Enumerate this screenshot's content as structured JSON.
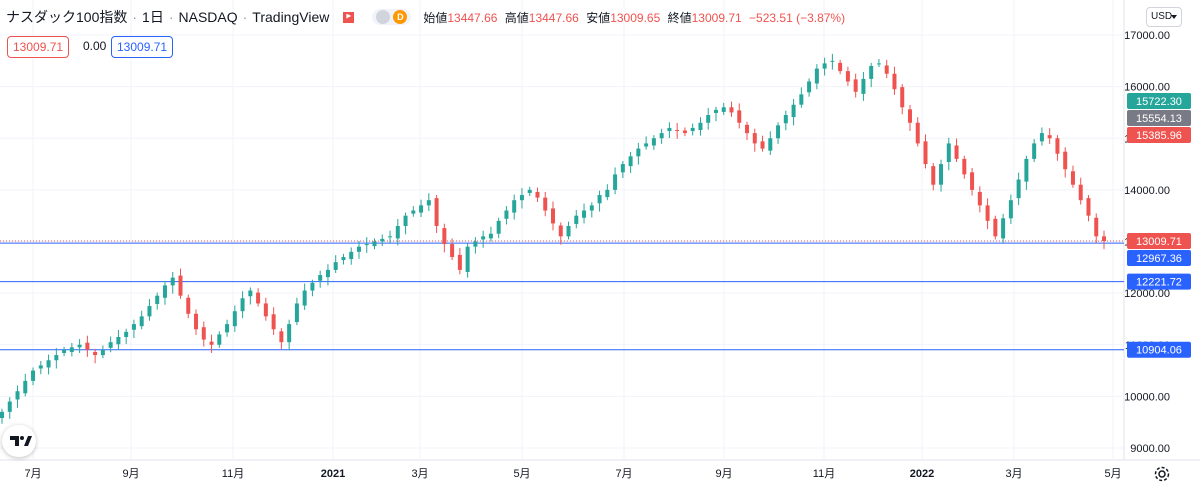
{
  "header": {
    "symbol": "ナスダック100指数",
    "interval": "1日",
    "exchange": "NASDAQ",
    "source": "TradingView",
    "mode_letter": "D",
    "ohlc": {
      "open_label": "始値",
      "open": "13447.66",
      "high_label": "高値",
      "high": "13447.66",
      "low_label": "安値",
      "low": "13009.65",
      "close_label": "終値",
      "close": "13009.71",
      "change": "−523.51 (−3.87%)"
    }
  },
  "quote_boxes": {
    "sell": "13009.71",
    "spread": "0.00",
    "buy": "13009.71"
  },
  "currency": "USD",
  "colors": {
    "up": "#26a69a",
    "down": "#ef5350",
    "line": "#2962ff",
    "axis_text": "#131722"
  },
  "icons": {
    "logo": "tradingview-logo-icon",
    "settings": "gear-icon",
    "flag": "red-flag-icon"
  },
  "chart_data": {
    "type": "candlestick",
    "x_ticks": [
      "7月",
      "9月",
      "11月",
      "2021",
      "3月",
      "5月",
      "7月",
      "9月",
      "11月",
      "2022",
      "3月",
      "5月"
    ],
    "y_ticks": [
      9000,
      10000,
      11000,
      12000,
      13000,
      14000,
      15000,
      16000,
      17000
    ],
    "y_tick_labels": [
      "9000.00",
      "10000.00",
      "11000.00",
      "12000.00",
      "13000.00",
      "14000.00",
      "15000.00",
      "16000.00",
      "17000.00"
    ],
    "ylim": [
      8800,
      17300
    ],
    "price_scale_labels": [
      {
        "text": "15722.30",
        "value": 15722.3,
        "color": "#26a69a"
      },
      {
        "text": "15554.13",
        "value": 15554.13,
        "color": "#787b86"
      },
      {
        "text": "15385.96",
        "value": 15385.96,
        "color": "#ef5350"
      },
      {
        "text": "13009.71",
        "value": 13009.71,
        "color": "#ef5350"
      },
      {
        "text": "12967.36",
        "value": 12967.36,
        "color": "#2962ff"
      },
      {
        "text": "12221.72",
        "value": 12221.72,
        "color": "#2962ff"
      },
      {
        "text": "10904.06",
        "value": 10904.06,
        "color": "#2962ff"
      }
    ],
    "horizontal_lines": [
      12967.36,
      12221.72,
      10904.06
    ],
    "last_price": 13009.71,
    "closes": [
      9700,
      9900,
      10100,
      10300,
      10500,
      10600,
      10700,
      10800,
      10900,
      10950,
      11000,
      10900,
      10800,
      10900,
      11050,
      11150,
      11250,
      11400,
      11550,
      11750,
      11950,
      12150,
      12300,
      11950,
      11600,
      11300,
      11100,
      11000,
      11200,
      11400,
      11650,
      11900,
      12050,
      11800,
      11550,
      11300,
      11050,
      11400,
      11800,
      12050,
      12200,
      12350,
      12450,
      12600,
      12700,
      12800,
      12900,
      12950,
      13000,
      13050,
      13100,
      13300,
      13500,
      13600,
      13700,
      13800,
      13300,
      12950,
      12700,
      12450,
      12900,
      13000,
      13100,
      13150,
      13400,
      13600,
      13800,
      13900,
      14000,
      13850,
      13600,
      13350,
      13100,
      13300,
      13500,
      13600,
      13700,
      13900,
      14000,
      14300,
      14500,
      14650,
      14800,
      14900,
      15000,
      15100,
      15200,
      15150,
      15100,
      15200,
      15300,
      15450,
      15550,
      15600,
      15500,
      15300,
      15100,
      14900,
      14800,
      15000,
      15250,
      15450,
      15650,
      15850,
      16100,
      16350,
      16450,
      16500,
      16300,
      16100,
      15900,
      16150,
      16400,
      16450,
      16250,
      15950,
      15600,
      15300,
      14900,
      14500,
      14100,
      14500,
      14900,
      14600,
      14300,
      14000,
      13700,
      13400,
      13100,
      13450,
      13800,
      14200,
      14600,
      14900,
      15100,
      15000,
      14700,
      14400,
      14100,
      13800,
      13500,
      13100,
      13009.71
    ]
  }
}
